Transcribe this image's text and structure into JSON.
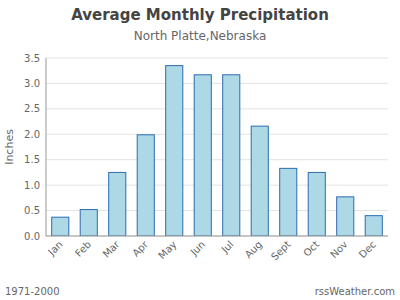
{
  "chart_data": {
    "type": "bar",
    "title": "Average Monthly Precipitation",
    "subtitle": "North Platte,Nebraska",
    "y_label": "Inches",
    "categories": [
      "Jan",
      "Feb",
      "Mar",
      "Apr",
      "May",
      "Jun",
      "Jul",
      "Aug",
      "Sept",
      "Oct",
      "Nov",
      "Dec"
    ],
    "values": [
      0.37,
      0.52,
      1.25,
      1.99,
      3.35,
      3.17,
      3.17,
      2.16,
      1.33,
      1.25,
      0.77,
      0.4
    ],
    "color": "#add8e6",
    "ylim": [
      0,
      3.5
    ],
    "yticks": [
      {
        "value": 0,
        "label": "0.0"
      },
      0.5,
      {
        "value": 1,
        "label": "1.0"
      },
      1.5,
      {
        "value": 2,
        "label": "2.0"
      },
      2.5,
      {
        "value": 3,
        "label": "3.0"
      },
      3.5
    ],
    "grid": true,
    "annotations": [
      "1971-2000",
      "rssWeather.com"
    ]
  }
}
